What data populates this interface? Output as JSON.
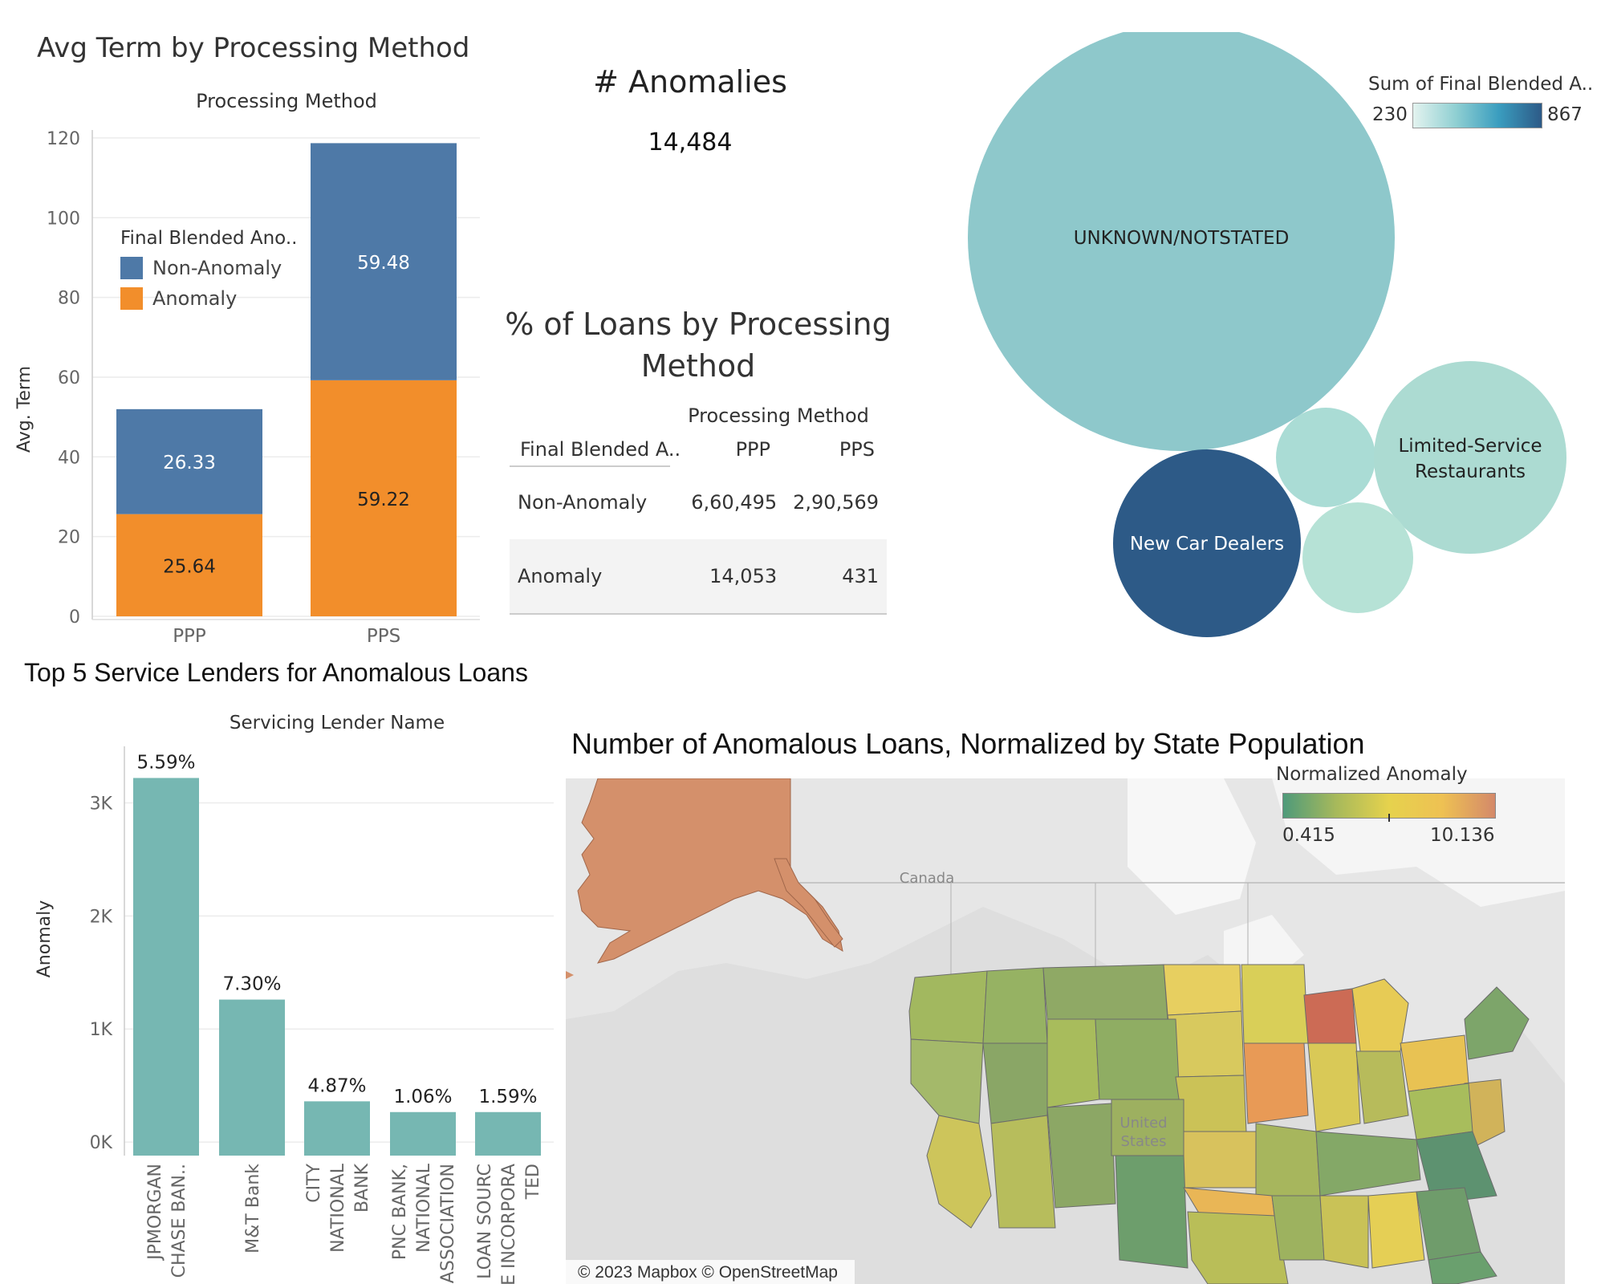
{
  "avg_term": {
    "title": "Avg Term by Processing Method",
    "column_header": "Processing Method",
    "ylabel": "Avg. Term",
    "legend_title": "Final Blended Ano..",
    "legend_items": [
      {
        "label": "Non-Anomaly",
        "color": "#4e79a7"
      },
      {
        "label": "Anomaly",
        "color": "#f28e2b"
      }
    ]
  },
  "anomaly_kpi": {
    "title": "# Anomalies",
    "value": "14,484"
  },
  "pct_loans": {
    "title_line1": "% of Loans by Processing",
    "title_line2": "Method",
    "column_group": "Processing Method",
    "row_header": "Final Blended A..",
    "columns": [
      "PPP",
      "PPS"
    ],
    "rows": [
      {
        "label": "Non-Anomaly",
        "values": [
          "6,60,495",
          "2,90,569"
        ]
      },
      {
        "label": "Anomaly",
        "values": [
          "14,053",
          "431"
        ]
      }
    ]
  },
  "bubble_legend": {
    "title": "Sum of Final Blended A..",
    "min": "230",
    "max": "867"
  },
  "top_lenders": {
    "title": "Top 5 Service Lenders for Anomalous Loans",
    "column_header": "Servicing Lender Name",
    "ylabel": "Anomaly"
  },
  "map": {
    "title": "Number of Anomalous Loans, Normalized by State Population",
    "legend_title": "Normalized Anomaly",
    "legend_min": "0.415",
    "legend_max": "10.136",
    "canada_label": "Canada",
    "us_label_1": "United",
    "us_label_2": "States",
    "attribution": "© 2023 Mapbox © OpenStreetMap"
  },
  "chart_data": [
    {
      "type": "bar",
      "stacked": true,
      "title": "Avg Term by Processing Method",
      "xlabel": "Processing Method",
      "ylabel": "Avg. Term",
      "categories": [
        "PPP",
        "PPS"
      ],
      "series": [
        {
          "name": "Anomaly",
          "values": [
            25.64,
            59.22
          ],
          "labels": [
            "25.64",
            "59.22"
          ],
          "color": "#f28e2b"
        },
        {
          "name": "Non-Anomaly",
          "values": [
            26.33,
            59.48
          ],
          "labels": [
            "26.33",
            "59.48"
          ],
          "color": "#4e79a7"
        }
      ],
      "ylim": [
        0,
        122
      ],
      "yticks": [
        0,
        20,
        40,
        60,
        80,
        100,
        120
      ],
      "ytick_labels": [
        "0",
        "20",
        "40",
        "60",
        "80",
        "100",
        "120"
      ],
      "grid": true,
      "legend_placement": "top-left"
    },
    {
      "type": "bubble",
      "legend_title": "Sum of Final Blended A..",
      "color_range": [
        230,
        867
      ],
      "bubbles": [
        {
          "label": "UNKNOWN/NOTSTATED",
          "value": 500
        },
        {
          "label": "New Car Dealers",
          "value": 867
        },
        {
          "label": "Limited-Service Restaurants",
          "value": 320
        },
        {
          "label": "",
          "value": 290
        },
        {
          "label": "",
          "value": 260
        }
      ]
    },
    {
      "type": "bar",
      "title": "Top 5 Service Lenders for Anomalous Loans",
      "xlabel": "Servicing Lender Name",
      "ylabel": "Anomaly",
      "categories": [
        [
          "JPMORGAN",
          "CHASE BAN.."
        ],
        [
          "M&T Bank"
        ],
        [
          "CITY",
          "NATIONAL",
          "BANK"
        ],
        [
          "PNC BANK,",
          "NATIONAL",
          "ASSOCIATION"
        ],
        [
          "LOAN SOURC",
          "E INCORPORA",
          "TED"
        ]
      ],
      "values": [
        3220,
        1260,
        360,
        265,
        265
      ],
      "data_labels": [
        "5.59%",
        "7.30%",
        "4.87%",
        "1.06%",
        "1.59%"
      ],
      "ylim": [
        -120,
        3500
      ],
      "yticks": [
        0,
        1000,
        2000,
        3000
      ],
      "ytick_labels": [
        "0K",
        "1K",
        "2K",
        "3K"
      ],
      "color": "#76b7b2"
    }
  ]
}
